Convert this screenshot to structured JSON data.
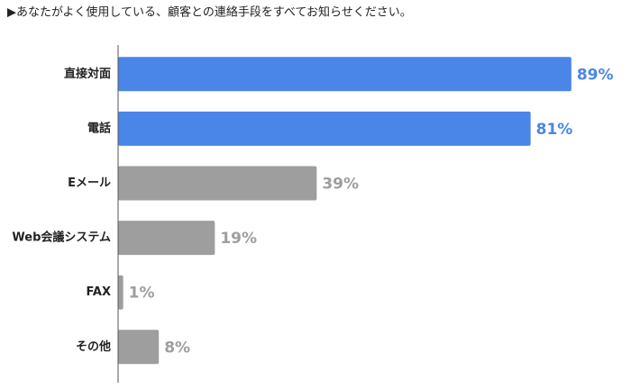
{
  "chart_data": {
    "type": "barh",
    "title": "▶あなたがよく使用している、顧客との連絡手段をすべてお知らせください。",
    "categories": [
      "直接対面",
      "電話",
      "Eメール",
      "Web会議システム",
      "FAX",
      "その他"
    ],
    "values": [
      89,
      81,
      39,
      19,
      1,
      8
    ],
    "value_labels": [
      "89%",
      "81%",
      "39%",
      "19%",
      "1%",
      "8%"
    ],
    "colors": [
      "#4a86e8",
      "#4a86e8",
      "#9e9e9e",
      "#9e9e9e",
      "#9e9e9e",
      "#9e9e9e"
    ],
    "xlim": [
      0,
      100
    ]
  }
}
